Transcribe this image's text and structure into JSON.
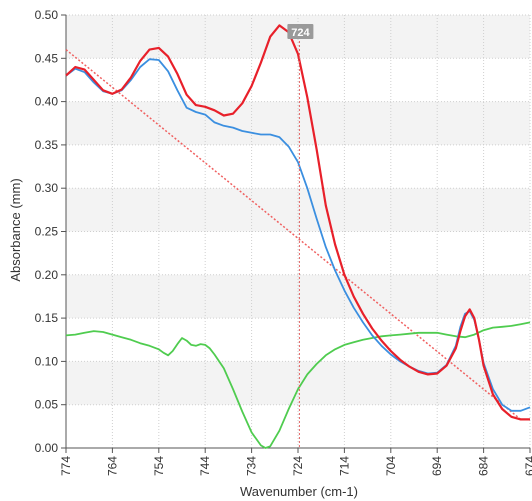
{
  "chart_data": {
    "type": "line",
    "xlabel": "Wavenumber (cm-1)",
    "ylabel": "Absorbance (mm)",
    "x_reversed": true,
    "xlim": [
      774,
      674
    ],
    "ylim": [
      0,
      0.5
    ],
    "x_ticks": [
      774,
      764,
      754,
      744,
      734,
      724,
      714,
      704,
      694,
      684,
      674
    ],
    "y_ticks": [
      0.0,
      0.05,
      0.1,
      0.15,
      0.2,
      0.25,
      0.3,
      0.35,
      0.4,
      0.45,
      0.5
    ],
    "y_tick_labels": [
      "0.00",
      "0.05",
      "0.10",
      "0.15",
      "0.20",
      "0.25",
      "0.30",
      "0.35",
      "0.40",
      "0.45",
      "0.50"
    ],
    "x_tick_labels": [
      "774",
      "764",
      "754",
      "744",
      "734",
      "724",
      "714",
      "704",
      "694",
      "684",
      "674"
    ],
    "grid": true,
    "cursor": {
      "x": 723.7,
      "label": "724"
    },
    "series": [
      {
        "color": "#e8202a",
        "points": [
          [
            774,
            0.43
          ],
          [
            772,
            0.44
          ],
          [
            770,
            0.437
          ],
          [
            768,
            0.425
          ],
          [
            766,
            0.413
          ],
          [
            764,
            0.409
          ],
          [
            762,
            0.414
          ],
          [
            760,
            0.428
          ],
          [
            758,
            0.447
          ],
          [
            756,
            0.46
          ],
          [
            754,
            0.462
          ],
          [
            752,
            0.452
          ],
          [
            750,
            0.432
          ],
          [
            748,
            0.408
          ],
          [
            746,
            0.396
          ],
          [
            744,
            0.394
          ],
          [
            742,
            0.39
          ],
          [
            740,
            0.384
          ],
          [
            738,
            0.386
          ],
          [
            736,
            0.398
          ],
          [
            734,
            0.418
          ],
          [
            732,
            0.445
          ],
          [
            730,
            0.475
          ],
          [
            728,
            0.488
          ],
          [
            726,
            0.48
          ],
          [
            724,
            0.455
          ],
          [
            722,
            0.405
          ],
          [
            720,
            0.345
          ],
          [
            718,
            0.28
          ],
          [
            716,
            0.235
          ],
          [
            714,
            0.2
          ],
          [
            712,
            0.175
          ],
          [
            710,
            0.155
          ],
          [
            708,
            0.138
          ],
          [
            706,
            0.124
          ],
          [
            704,
            0.112
          ],
          [
            702,
            0.102
          ],
          [
            700,
            0.094
          ],
          [
            698,
            0.088
          ],
          [
            696,
            0.085
          ],
          [
            694,
            0.086
          ],
          [
            692,
            0.095
          ],
          [
            690,
            0.115
          ],
          [
            689,
            0.135
          ],
          [
            688,
            0.152
          ],
          [
            687,
            0.16
          ],
          [
            686,
            0.15
          ],
          [
            685,
            0.125
          ],
          [
            684,
            0.095
          ],
          [
            682,
            0.062
          ],
          [
            680,
            0.045
          ],
          [
            678,
            0.036
          ],
          [
            676,
            0.033
          ],
          [
            674,
            0.033
          ]
        ]
      },
      {
        "color": "#3b8fe0",
        "points": [
          [
            774,
            0.43
          ],
          [
            772,
            0.438
          ],
          [
            770,
            0.434
          ],
          [
            768,
            0.422
          ],
          [
            766,
            0.412
          ],
          [
            764,
            0.409
          ],
          [
            762,
            0.413
          ],
          [
            760,
            0.425
          ],
          [
            758,
            0.44
          ],
          [
            756,
            0.449
          ],
          [
            754,
            0.448
          ],
          [
            752,
            0.435
          ],
          [
            750,
            0.413
          ],
          [
            748,
            0.393
          ],
          [
            746,
            0.388
          ],
          [
            744,
            0.385
          ],
          [
            742,
            0.376
          ],
          [
            740,
            0.372
          ],
          [
            738,
            0.37
          ],
          [
            736,
            0.366
          ],
          [
            734,
            0.364
          ],
          [
            732,
            0.362
          ],
          [
            730,
            0.362
          ],
          [
            728,
            0.359
          ],
          [
            726,
            0.348
          ],
          [
            724,
            0.33
          ],
          [
            722,
            0.3
          ],
          [
            720,
            0.265
          ],
          [
            718,
            0.232
          ],
          [
            716,
            0.205
          ],
          [
            714,
            0.182
          ],
          [
            712,
            0.162
          ],
          [
            710,
            0.145
          ],
          [
            708,
            0.13
          ],
          [
            706,
            0.118
          ],
          [
            704,
            0.108
          ],
          [
            702,
            0.1
          ],
          [
            700,
            0.094
          ],
          [
            698,
            0.089
          ],
          [
            696,
            0.086
          ],
          [
            694,
            0.087
          ],
          [
            692,
            0.096
          ],
          [
            690,
            0.118
          ],
          [
            689,
            0.14
          ],
          [
            688,
            0.155
          ],
          [
            687,
            0.158
          ],
          [
            686,
            0.148
          ],
          [
            685,
            0.125
          ],
          [
            684,
            0.098
          ],
          [
            682,
            0.068
          ],
          [
            680,
            0.05
          ],
          [
            678,
            0.043
          ],
          [
            676,
            0.043
          ],
          [
            674,
            0.047
          ]
        ]
      },
      {
        "color": "#4fcc4f",
        "points": [
          [
            774,
            0.13
          ],
          [
            772,
            0.131
          ],
          [
            770,
            0.133
          ],
          [
            768,
            0.135
          ],
          [
            766,
            0.134
          ],
          [
            764,
            0.131
          ],
          [
            762,
            0.128
          ],
          [
            760,
            0.125
          ],
          [
            758,
            0.121
          ],
          [
            756,
            0.118
          ],
          [
            754,
            0.114
          ],
          [
            753,
            0.11
          ],
          [
            752,
            0.107
          ],
          [
            751,
            0.112
          ],
          [
            750,
            0.12
          ],
          [
            749,
            0.127
          ],
          [
            748,
            0.124
          ],
          [
            747,
            0.119
          ],
          [
            746,
            0.118
          ],
          [
            745,
            0.12
          ],
          [
            744,
            0.119
          ],
          [
            743,
            0.115
          ],
          [
            742,
            0.108
          ],
          [
            740,
            0.092
          ],
          [
            738,
            0.068
          ],
          [
            736,
            0.042
          ],
          [
            734,
            0.018
          ],
          [
            732,
            0.003
          ],
          [
            731,
            0.0
          ],
          [
            730,
            0.002
          ],
          [
            728,
            0.02
          ],
          [
            726,
            0.045
          ],
          [
            724,
            0.068
          ],
          [
            722,
            0.085
          ],
          [
            720,
            0.097
          ],
          [
            718,
            0.107
          ],
          [
            716,
            0.114
          ],
          [
            714,
            0.119
          ],
          [
            712,
            0.122
          ],
          [
            710,
            0.125
          ],
          [
            708,
            0.127
          ],
          [
            706,
            0.129
          ],
          [
            704,
            0.13
          ],
          [
            702,
            0.131
          ],
          [
            700,
            0.132
          ],
          [
            698,
            0.133
          ],
          [
            696,
            0.133
          ],
          [
            694,
            0.133
          ],
          [
            692,
            0.131
          ],
          [
            690,
            0.129
          ],
          [
            688,
            0.128
          ],
          [
            686,
            0.131
          ],
          [
            684,
            0.136
          ],
          [
            682,
            0.139
          ],
          [
            680,
            0.14
          ],
          [
            678,
            0.141
          ],
          [
            676,
            0.143
          ],
          [
            674,
            0.145
          ]
        ]
      }
    ],
    "baseline": {
      "color": "#f06060",
      "points": [
        [
          774,
          0.46
        ],
        [
          676,
          0.033
        ]
      ]
    }
  }
}
